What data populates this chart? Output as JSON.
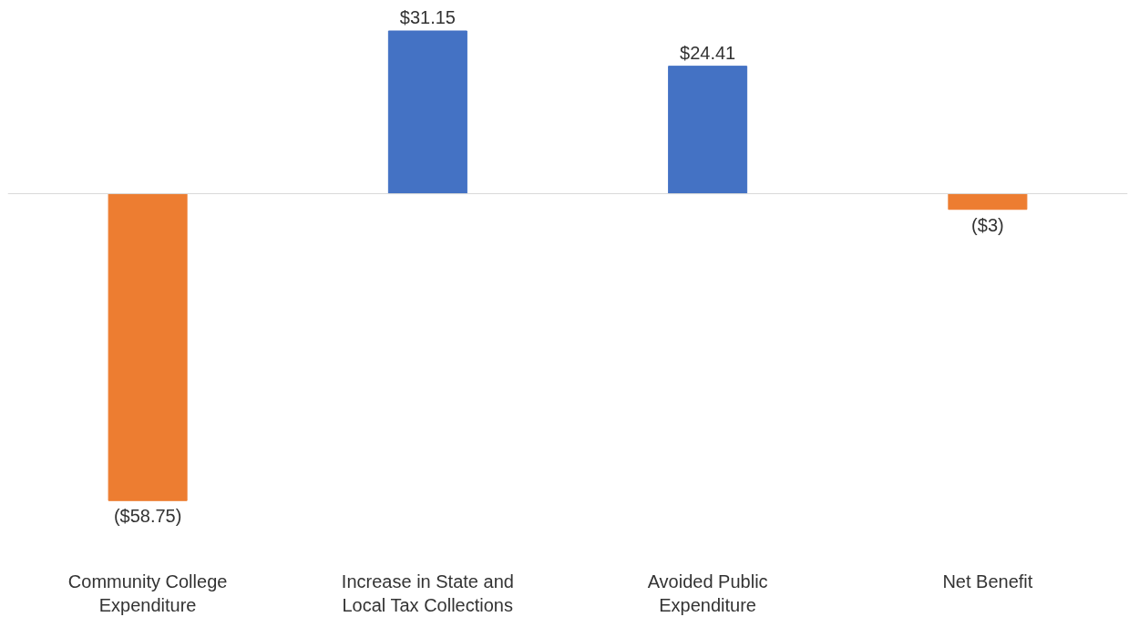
{
  "chart_data": {
    "type": "bar",
    "categories": [
      "Community College Expenditure",
      "Increase in State and Local Tax Collections",
      "Avoided Public Expenditure",
      "Net Benefit"
    ],
    "values": [
      -58.75,
      31.15,
      24.41,
      -3
    ],
    "colors": [
      "#ed7d31",
      "#4472c4",
      "#4472c4",
      "#ed7d31"
    ],
    "value_labels": [
      "($58.75)",
      "$31.15",
      "$24.41",
      "($3)"
    ],
    "grid": false
  }
}
